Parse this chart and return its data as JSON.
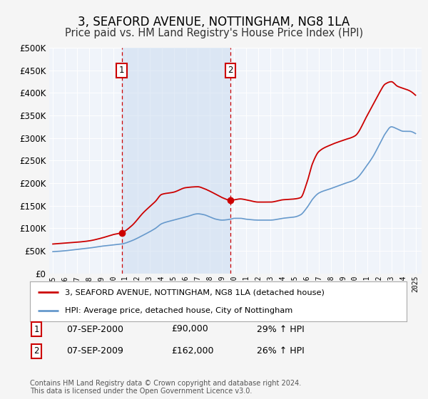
{
  "title": "3, SEAFORD AVENUE, NOTTINGHAM, NG8 1LA",
  "subtitle": "Price paid vs. HM Land Registry's House Price Index (HPI)",
  "title_fontsize": 12,
  "subtitle_fontsize": 10.5,
  "bg_color": "#f5f5f5",
  "plot_bg_color": "#f0f4fa",
  "grid_color": "#ffffff",
  "ylim": [
    0,
    500000
  ],
  "yticks": [
    0,
    50000,
    100000,
    150000,
    200000,
    250000,
    300000,
    350000,
    400000,
    450000,
    500000
  ],
  "xlim_start": 1994.7,
  "xlim_end": 2025.5,
  "legend_label_red": "3, SEAFORD AVENUE, NOTTINGHAM, NG8 1LA (detached house)",
  "legend_label_blue": "HPI: Average price, detached house, City of Nottingham",
  "marker1_x": 2000.69,
  "marker1_y": 90000,
  "marker1_label": "1",
  "marker2_x": 2009.69,
  "marker2_y": 162000,
  "marker2_label": "2",
  "annotation1_date": "07-SEP-2000",
  "annotation1_price": "£90,000",
  "annotation1_hpi": "29% ↑ HPI",
  "annotation2_date": "07-SEP-2009",
  "annotation2_price": "£162,000",
  "annotation2_hpi": "26% ↑ HPI",
  "footer": "Contains HM Land Registry data © Crown copyright and database right 2024.\nThis data is licensed under the Open Government Licence v3.0.",
  "red_color": "#cc0000",
  "blue_color": "#6699cc",
  "shade_color": "#dce8f5"
}
